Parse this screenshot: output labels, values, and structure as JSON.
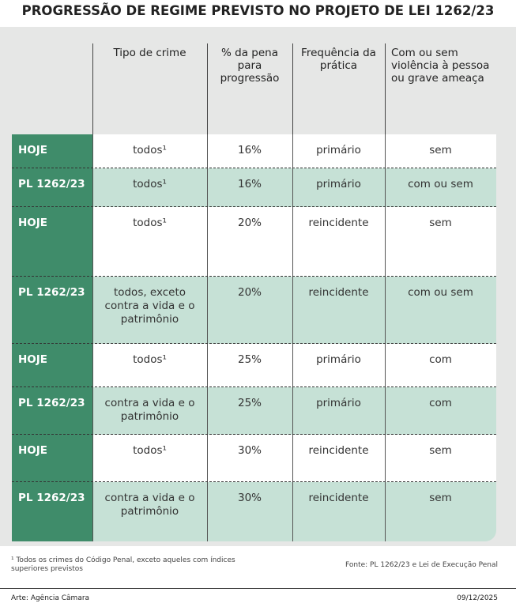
{
  "header": {
    "title": "PROGRESSÃO DE REGIME PREVISTO NO PROJETO DE LEI 1262/23"
  },
  "table": {
    "columns": [
      "Tipo de crime",
      "% da pena para progressão",
      "Frequência da prática",
      "Com ou sem violência à pessoa ou grave ameaça"
    ],
    "rows": [
      [
        "HOJE",
        "todos¹",
        "16%",
        "primário",
        "sem"
      ],
      [
        "PL 1262/23",
        "todos¹",
        "16%",
        "primário",
        "com ou sem"
      ],
      [
        "HOJE",
        "todos¹",
        "20%",
        "reincidente",
        "sem"
      ],
      [
        "PL 1262/23",
        "todos, exceto contra a vida e o patrimônio",
        "20%",
        "reincidente",
        "com ou sem"
      ],
      [
        "HOJE",
        "todos¹",
        "25%",
        "primário",
        "com"
      ],
      [
        "PL 1262/23",
        "contra a vida e o patrimônio",
        "25%",
        "primário",
        "com"
      ],
      [
        "HOJE",
        "todos¹",
        "30%",
        "reincidente",
        "sem"
      ],
      [
        "PL 1262/23",
        "contra a vida e o patrimônio",
        "30%",
        "reincidente",
        "sem"
      ]
    ]
  },
  "footer": {
    "footnote": "¹ Todos os crimes do Código Penal, exceto aqueles com índices superiores previstos",
    "source": "Fonte: PL 1262/23 e Lei de Execução Penal",
    "credit": "Arte: Agência Câmara",
    "date": "09/12/2025"
  }
}
